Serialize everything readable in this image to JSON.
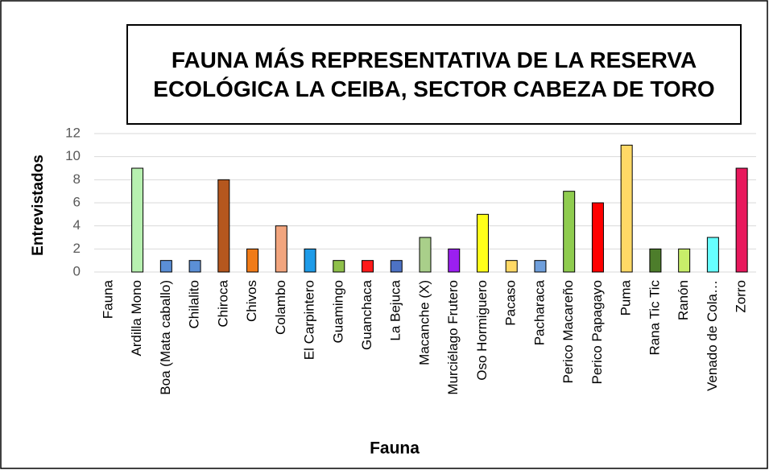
{
  "chart_data": {
    "type": "bar",
    "title": "FAUNA MÁS REPRESENTATIVA DE LA RESERVA ECOLÓGICA LA CEIBA, SECTOR CABEZA DE TORO",
    "x_label": "Fauna",
    "y_label": "Entrevistados",
    "categories": [
      "Fauna",
      "Ardilla Mono",
      "Boa (Mata caballo)",
      "Chilalito",
      "Chiroca",
      "Chivos",
      "Colambo",
      "El Carpintero",
      "Guamingo",
      "Guanchaca",
      "La Bejuca",
      "Macanche (X)",
      "Murciélago Frutero",
      "Oso Hormiguero",
      "Pacaso",
      "Pacharaca",
      "Perico Macareño",
      "Perico Papagayo",
      "Puma",
      "Rana Tic Tic",
      "Ranón",
      "Venado de Cola…",
      "Zorro"
    ],
    "values": [
      null,
      9,
      1,
      1,
      8,
      2,
      4,
      2,
      1,
      1,
      1,
      3,
      2,
      5,
      1,
      1,
      7,
      6,
      11,
      2,
      2,
      3,
      9
    ],
    "colors": [
      "#cccccc",
      "#b7f0b0",
      "#5b8fd6",
      "#5b8fd6",
      "#b5571e",
      "#f07b18",
      "#f2a57e",
      "#1e9be8",
      "#8fc04b",
      "#ff1a1a",
      "#4d72c4",
      "#a9cf8a",
      "#9b1ff0",
      "#ffff1a",
      "#ffd966",
      "#6f9fdc",
      "#8fcc4f",
      "#ff0000",
      "#ffd966",
      "#4d7d2b",
      "#c8ee6a",
      "#66ffff",
      "#e8185c"
    ],
    "ylim": [
      0,
      12
    ],
    "yticks": [
      0,
      2,
      4,
      6,
      8,
      10,
      12
    ],
    "grid": true
  }
}
